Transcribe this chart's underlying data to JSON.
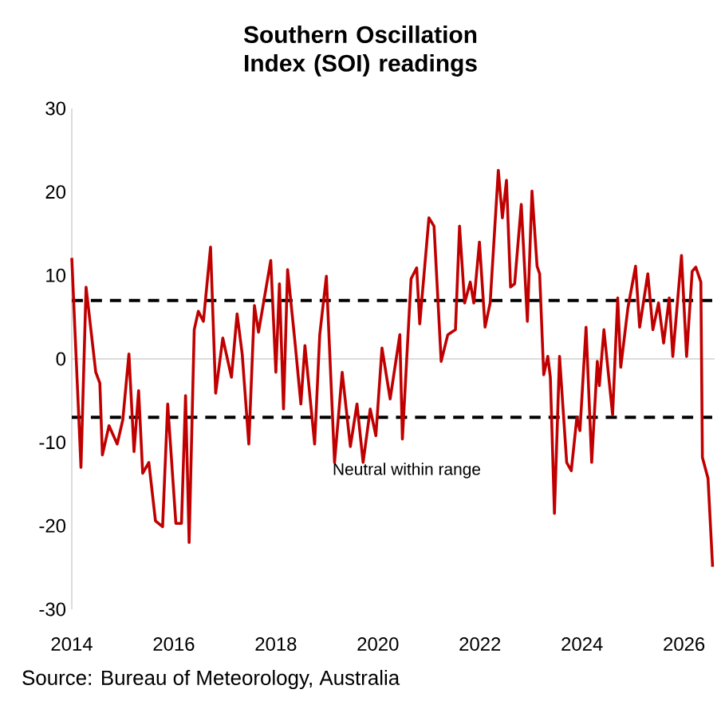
{
  "chart_data": {
    "type": "line",
    "title": "Southern Oscillation Index (SOI) readings",
    "x": [
      2014.0,
      2014.18,
      2014.28,
      2014.47,
      2014.55,
      2014.6,
      2014.73,
      2014.89,
      2015.0,
      2015.12,
      2015.22,
      2015.31,
      2015.39,
      2015.51,
      2015.64,
      2015.78,
      2015.88,
      2016.04,
      2016.15,
      2016.23,
      2016.3,
      2016.4,
      2016.48,
      2016.58,
      2016.72,
      2016.82,
      2016.96,
      2017.13,
      2017.24,
      2017.34,
      2017.47,
      2017.58,
      2017.66,
      2017.9,
      2018.0,
      2018.07,
      2018.15,
      2018.23,
      2018.37,
      2018.49,
      2018.57,
      2018.76,
      2018.86,
      2018.99,
      2019.15,
      2019.3,
      2019.46,
      2019.59,
      2019.71,
      2019.85,
      2019.96,
      2020.08,
      2020.24,
      2020.43,
      2020.48,
      2020.65,
      2020.76,
      2020.82,
      2021.0,
      2021.1,
      2021.24,
      2021.37,
      2021.52,
      2021.6,
      2021.7,
      2021.81,
      2021.88,
      2021.99,
      2022.1,
      2022.2,
      2022.36,
      2022.44,
      2022.52,
      2022.6,
      2022.68,
      2022.81,
      2022.93,
      2023.02,
      2023.12,
      2023.17,
      2023.25,
      2023.33,
      2023.38,
      2023.46,
      2023.56,
      2023.7,
      2023.79,
      2023.9,
      2023.96,
      2024.08,
      2024.19,
      2024.3,
      2024.34,
      2024.43,
      2024.6,
      2024.7,
      2024.76,
      2024.9,
      2025.05,
      2025.13,
      2025.29,
      2025.39,
      2025.5,
      2025.6,
      2025.71,
      2025.78,
      2025.95,
      2026.05,
      2026.16,
      2026.23,
      2026.33,
      2026.36,
      2026.47,
      2026.56
    ],
    "series": [
      {
        "color": "#c00000",
        "values": [
          12.1,
          -13,
          8.6,
          -1.6,
          -2.9,
          -11.5,
          -8,
          -10.2,
          -7.3,
          0.6,
          -11.1,
          -3.8,
          -13.7,
          -12.4,
          -19.4,
          -20.1,
          -5.4,
          -19.7,
          -19.7,
          -4.4,
          -22,
          3.5,
          5.7,
          4.5,
          13.4,
          -4.1,
          2.5,
          -2.2,
          5.4,
          0.6,
          -10.2,
          6.4,
          3.2,
          11.8,
          -1.6,
          9,
          -6,
          10.7,
          2.3,
          -5.4,
          1.6,
          -10.2,
          2.9,
          9.9,
          -12.4,
          -1.6,
          -10.5,
          -5.4,
          -12.4,
          -6,
          -9.2,
          1.3,
          -4.8,
          2.9,
          -9.6,
          9.6,
          10.9,
          4.2,
          16.9,
          15.9,
          -0.3,
          2.9,
          3.5,
          15.9,
          6.7,
          9.2,
          6.7,
          14,
          3.8,
          6.7,
          22.6,
          16.9,
          21.4,
          8.6,
          9,
          18.5,
          4.5,
          20.1,
          11.1,
          10.2,
          -1.9,
          0.3,
          -2.2,
          -18.5,
          0.3,
          -12.4,
          -13.4,
          -7,
          -8.6,
          3.8,
          -12.4,
          -0.3,
          -3.2,
          3.5,
          -6.7,
          7.3,
          -1,
          6.1,
          11.1,
          3.8,
          10.2,
          3.5,
          6.7,
          1.9,
          7.3,
          0.3,
          12.4,
          0.3,
          10.5,
          11,
          9.2,
          -11.8,
          -14.3,
          -24.9
        ]
      }
    ],
    "xlim": [
      2014,
      2026.6
    ],
    "xticks": [
      2014,
      2016,
      2018,
      2020,
      2022,
      2024,
      2026
    ],
    "ylim": [
      -30,
      30
    ],
    "yticks": [
      -30,
      -20,
      -10,
      0,
      10,
      20,
      30
    ],
    "ref_lines": [
      {
        "axis": "y",
        "value": 7,
        "color": "#000000",
        "line_style": "dashed"
      },
      {
        "axis": "y",
        "value": -7,
        "color": "#000000",
        "line_style": "dashed"
      }
    ],
    "annotations": [
      "Neutral within range",
      "Source: Bureau of Meteorology, Australia"
    ],
    "marker": "none",
    "line_style": "solid"
  }
}
